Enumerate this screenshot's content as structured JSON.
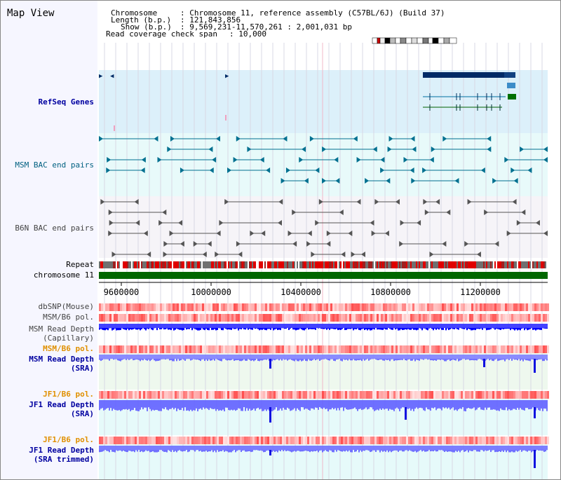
{
  "view": {
    "title": "Map View"
  },
  "header": {
    "chromosome_label": "Chromosome",
    "chromosome_value": ": Chromosome 11, reference assembly (C57BL/6J) (Build 37)",
    "length_label": "Length (b.p.)",
    "length_value": ": 121,843,856",
    "show_label": "Show (b.p.)",
    "show_value": ": 9,569,231-11,570,261 : 2,001,031 bp",
    "coverage_label": "Read coverage check span",
    "coverage_value": ": 10,000"
  },
  "tracks": {
    "refseq": "RefSeq Genes",
    "msm_bac": "MSM BAC end pairs",
    "b6n_bac": "B6N BAC end pairs",
    "repeat": "Repeat",
    "chromosome": "chromosome 11",
    "dbsnp": "dbSNP(Mouse)",
    "msm_b6_pol_1": "MSM/B6 pol.",
    "msm_depth_cap_1": "MSM Read Depth",
    "msm_depth_cap_2": "(Capillary)",
    "msm_b6_pol_2": "MSM/B6 pol.",
    "msm_depth_sra_1": "MSM Read Depth",
    "msm_depth_sra_2": "(SRA)",
    "jf1_b6_pol_1": "JF1/B6 pol.",
    "jf1_depth_sra_1": "JF1 Read Depth",
    "jf1_depth_sra_2": "(SRA)",
    "jf1_b6_pol_2": "JF1/B6 pol.",
    "jf1_depth_trim_1": "JF1 Read Depth",
    "jf1_depth_trim_2": "(SRA trimmed)"
  },
  "ruler": {
    "ticks": [
      "9600000",
      "10000000",
      "10400000",
      "10800000",
      "11200000"
    ]
  },
  "colors": {
    "refseq_bg": "#dcf0fa",
    "msm_bg": "#e8fafa",
    "b6n_bg": "#f6f4f8",
    "gene_dark": "#002a66",
    "bac_teal": "#007090",
    "bac_gray": "#555555",
    "chrom_green": "#006600",
    "depth_blue": "#0000ff",
    "depth_light": "#7070ff"
  }
}
